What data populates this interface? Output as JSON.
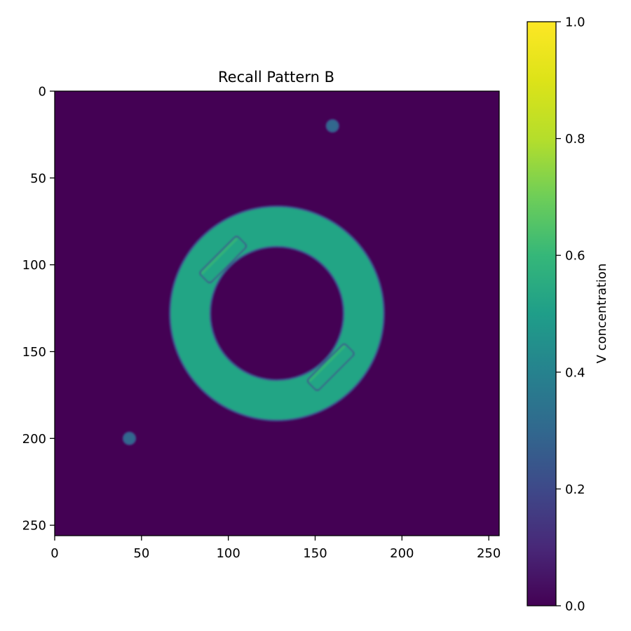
{
  "chart_data": {
    "type": "heatmap",
    "title": "Recall Pattern B",
    "xlabel": "",
    "ylabel": "",
    "x_range": [
      0,
      256
    ],
    "y_range": [
      0,
      256
    ],
    "y_inverted": true,
    "x_ticks": [
      "0",
      "50",
      "100",
      "150",
      "200",
      "250"
    ],
    "y_ticks": [
      "0",
      "50",
      "100",
      "150",
      "200",
      "250"
    ],
    "grid": false,
    "colormap": "viridis",
    "colors": {
      "background": "#440154",
      "ring": "#21a585",
      "ring_edge": "#3b528b",
      "tab_highlight": "#3ab96f",
      "spot": "#31688e"
    },
    "field": {
      "background_value": 0.0,
      "ring": {
        "center": [
          128,
          128
        ],
        "inner_radius": 39,
        "outer_radius": 61,
        "value": 0.58
      },
      "tabs": [
        {
          "center": [
            97,
            97
          ],
          "along_diagonal": [
            -15,
            15
          ],
          "across_diagonal": [
            -4,
            4
          ],
          "value": 0.63
        },
        {
          "center": [
            159,
            159
          ],
          "along_diagonal": [
            -15,
            15
          ],
          "across_diagonal": [
            -4,
            4
          ],
          "value": 0.63
        }
      ],
      "spots": [
        {
          "x": 160,
          "y": 20,
          "radius": 3.5,
          "value": 0.35
        },
        {
          "x": 43,
          "y": 200,
          "radius": 3.5,
          "value": 0.35
        }
      ]
    },
    "colorbar": {
      "label": "V concentration",
      "range": [
        0.0,
        1.0
      ],
      "ticks": [
        "0.0",
        "0.2",
        "0.4",
        "0.6",
        "0.8",
        "1.0"
      ]
    }
  }
}
